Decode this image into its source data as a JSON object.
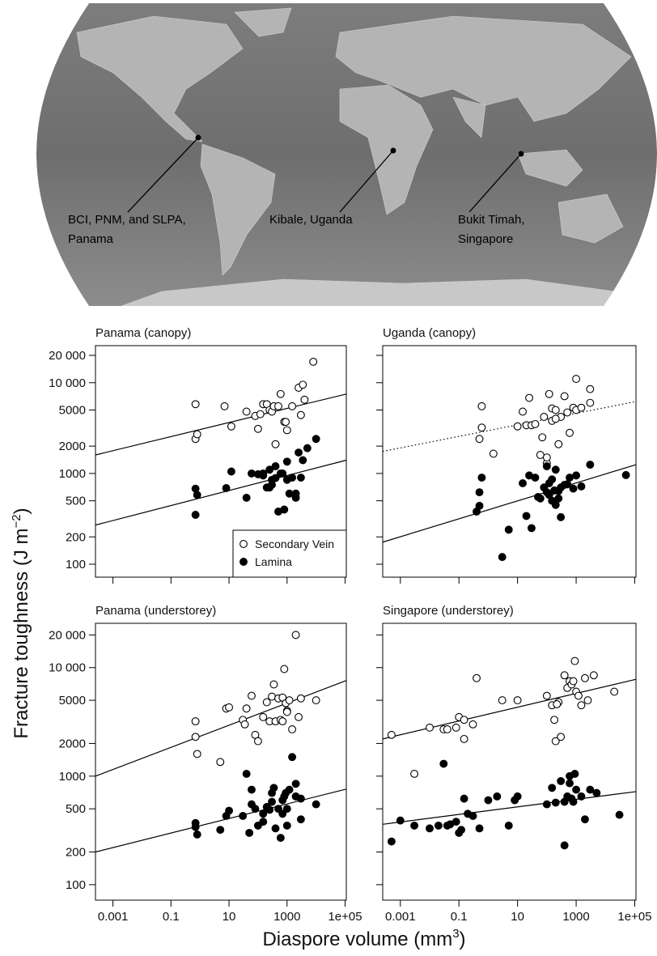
{
  "map": {
    "sites": [
      {
        "label_lines": [
          "BCI, PNM, and SLPA,",
          "Panama"
        ]
      },
      {
        "label_lines": [
          "Kibale, Uganda"
        ]
      },
      {
        "label_lines": [
          "Bukit Timah,",
          "Singapore"
        ]
      }
    ]
  },
  "chart_data": {
    "type": "scatter",
    "y_label": {
      "text": "Fracture toughness (J m",
      "sup": "−2",
      "end": ")"
    },
    "x_label": {
      "text": "Diaspore volume (mm",
      "sup": "3",
      "end": ")"
    },
    "log_x": true,
    "log_y": true,
    "xlim": [
      0.00025,
      110000
    ],
    "ylim": [
      72,
      25600
    ],
    "xticks": [
      0.001,
      0.1,
      10,
      1000,
      {
        "value": 100000,
        "label": "1e+05"
      }
    ],
    "yticks": [
      100,
      200,
      500,
      1000,
      2000,
      5000,
      {
        "value": 10000,
        "label": "10 000"
      },
      {
        "value": 20000,
        "label": "20 000"
      }
    ],
    "panels": [
      {
        "title": "Panama (canopy)",
        "legend": "bottom-right",
        "series": [
          {
            "name": "Secondary Vein",
            "marker": "open",
            "x": [
              0.7,
              0.7,
              0.8,
              7,
              12,
              40,
              80,
              100,
              120,
              150,
              200,
              250,
              300,
              350,
              400,
              500,
              600,
              800,
              900,
              1000,
              1500,
              2500,
              3000,
              3500,
              4000,
              8000
            ],
            "values": [
              5800,
              2400,
              2700,
              5500,
              3300,
              4800,
              4300,
              3100,
              4500,
              5800,
              5800,
              5000,
              4800,
              5500,
              2100,
              5500,
              7500,
              3700,
              3700,
              3000,
              5500,
              8800,
              4400,
              9500,
              6500,
              17000
            ],
            "fit": {
              "x": [
                0.00025,
                110000
              ],
              "values": [
                1600,
                7500
              ],
              "style": "solid"
            }
          },
          {
            "name": "Lamina",
            "marker": "filled",
            "x": [
              0.7,
              0.8,
              0.7,
              8,
              12,
              40,
              60,
              100,
              150,
              200,
              250,
              300,
              400,
              500,
              600,
              800,
              1000,
              1000,
              1500,
              2000,
              2500,
              3000,
              3500,
              5000,
              10000,
              1200,
              700,
              400,
              300,
              2000,
              150,
              250
            ],
            "values": [
              680,
              580,
              350,
              690,
              1050,
              540,
              1000,
              980,
              1000,
              700,
              1100,
              750,
              1200,
              380,
              1000,
              400,
              1350,
              850,
              900,
              600,
              1700,
              900,
              1400,
              1900,
              2400,
              600,
              1000,
              890,
              850,
              540,
              950,
              700
            ],
            "fit": {
              "x": [
                0.00025,
                110000
              ],
              "values": [
                270,
                1400
              ],
              "style": "solid"
            }
          }
        ]
      },
      {
        "title": "Uganda (canopy)",
        "series": [
          {
            "name": "Secondary Vein",
            "marker": "open",
            "x": [
              0.5,
              0.6,
              0.6,
              1.5,
              10,
              15,
              20,
              25,
              30,
              40,
              60,
              80,
              100,
              120,
              150,
              200,
              250,
              300,
              400,
              500,
              600,
              800,
              1000,
              1000,
              1500,
              3000,
              3000,
              70,
              100,
              150,
              200
            ],
            "values": [
              2400,
              3200,
              5500,
              1650,
              3300,
              4800,
              3400,
              6800,
              3400,
              3500,
              1600,
              4200,
              1300,
              7500,
              5200,
              5000,
              2100,
              4200,
              7100,
              4700,
              2800,
              5300,
              5000,
              11000,
              5300,
              8500,
              6000,
              2500,
              1500,
              3800,
              4000
            ],
            "fit": {
              "x": [
                0.00025,
                110000
              ],
              "values": [
                1750,
                6200
              ],
              "style": "dotted"
            }
          },
          {
            "name": "Lamina",
            "marker": "filled",
            "x": [
              0.4,
              0.5,
              0.5,
              0.6,
              3,
              5,
              15,
              20,
              25,
              30,
              40,
              50,
              60,
              80,
              100,
              100,
              120,
              150,
              150,
              200,
              200,
              250,
              300,
              300,
              400,
              500,
              600,
              800,
              1000,
              1500,
              3000,
              50000,
              120,
              180,
              250
            ],
            "values": [
              380,
              620,
              440,
              900,
              120,
              240,
              780,
              340,
              950,
              250,
              900,
              550,
              530,
              700,
              1200,
              620,
              580,
              860,
              500,
              450,
              1100,
              640,
              330,
              700,
              750,
              760,
              900,
              680,
              950,
              720,
              1250,
              960,
              780,
              650,
              530
            ],
            "fit": {
              "x": [
                0.00025,
                110000
              ],
              "values": [
                175,
                1250
              ],
              "style": "solid"
            }
          }
        ]
      },
      {
        "title": "Panama (understorey)",
        "series": [
          {
            "name": "Secondary Vein",
            "marker": "open",
            "x": [
              0.7,
              0.7,
              0.8,
              5,
              8,
              10,
              30,
              35,
              40,
              60,
              80,
              100,
              150,
              200,
              250,
              300,
              350,
              400,
              500,
              600,
              700,
              800,
              900,
              1000,
              1200,
              1500,
              2000,
              3000,
              10000,
              700,
              1000,
              2500
            ],
            "values": [
              3200,
              2300,
              1600,
              1350,
              4200,
              4300,
              3300,
              3000,
              4200,
              5500,
              2400,
              2100,
              3500,
              4800,
              3200,
              5400,
              7000,
              3200,
              5200,
              3300,
              5300,
              9700,
              4700,
              4000,
              5000,
              2700,
              20000,
              5200,
              5000,
              3200,
              3900,
              3500
            ],
            "fit": {
              "x": [
                0.00025,
                110000
              ],
              "values": [
                1000,
                7600
              ],
              "style": "solid"
            }
          },
          {
            "name": "Lamina",
            "marker": "filled",
            "x": [
              0.7,
              0.7,
              0.8,
              5,
              8,
              10,
              30,
              40,
              50,
              60,
              80,
              100,
              150,
              200,
              250,
              300,
              350,
              400,
              500,
              600,
              700,
              800,
              900,
              1000,
              1200,
              1500,
              2000,
              3000,
              10000,
              300,
              700,
              1000,
              2000,
              3000,
              150,
              60
            ],
            "values": [
              370,
              340,
              290,
              320,
              430,
              480,
              430,
              1050,
              300,
              750,
              500,
              350,
              450,
              520,
              490,
              700,
              780,
              330,
              500,
              270,
              600,
              650,
              700,
              500,
              750,
              1500,
              850,
              400,
              550,
              580,
              450,
              350,
              650,
              620,
              380,
              550
            ],
            "fit": {
              "x": [
                0.00025,
                110000
              ],
              "values": [
                200,
                760
              ],
              "style": "solid"
            }
          }
        ]
      },
      {
        "title": "Singapore (understorey)",
        "series": [
          {
            "name": "Secondary Vein",
            "marker": "open",
            "x": [
              0.0005,
              0.003,
              0.01,
              0.03,
              0.04,
              0.08,
              0.1,
              0.15,
              0.3,
              0.4,
              3,
              10,
              100,
              200,
              250,
              300,
              400,
              500,
              600,
              700,
              800,
              900,
              1000,
              1200,
              1500,
              2000,
              2500,
              4000,
              20000,
              0.15,
              180,
              150,
              220
            ],
            "values": [
              2400,
              1050,
              2800,
              2700,
              2700,
              2800,
              3500,
              2200,
              3000,
              8000,
              5000,
              5000,
              5500,
              2100,
              4800,
              2300,
              8500,
              6500,
              7500,
              7000,
              7500,
              11500,
              6000,
              5500,
              4500,
              8000,
              5000,
              8500,
              6000,
              3300,
              3300,
              4500,
              4600
            ],
            "fit": {
              "x": [
                0.00025,
                110000
              ],
              "values": [
                2200,
                7800
              ],
              "style": "solid"
            }
          },
          {
            "name": "Lamina",
            "marker": "filled",
            "x": [
              0.0005,
              0.001,
              0.003,
              0.01,
              0.02,
              0.03,
              0.04,
              0.05,
              0.08,
              0.1,
              0.15,
              0.2,
              0.3,
              0.5,
              1,
              2,
              5,
              8,
              10,
              100,
              150,
              200,
              300,
              400,
              500,
              600,
              700,
              800,
              900,
              1000,
              1500,
              2000,
              3000,
              5000,
              30000,
              0.12,
              400,
              600
            ],
            "values": [
              250,
              390,
              350,
              330,
              350,
              1300,
              350,
              360,
              380,
              300,
              620,
              450,
              430,
              330,
              600,
              650,
              350,
              600,
              650,
              550,
              780,
              570,
              900,
              230,
              650,
              1000,
              620,
              580,
              1050,
              750,
              650,
              400,
              750,
              700,
              440,
              320,
              580,
              860
            ],
            "fit": {
              "x": [
                0.00025,
                110000
              ],
              "values": [
                360,
                720
              ],
              "style": "solid"
            }
          }
        ]
      }
    ]
  }
}
